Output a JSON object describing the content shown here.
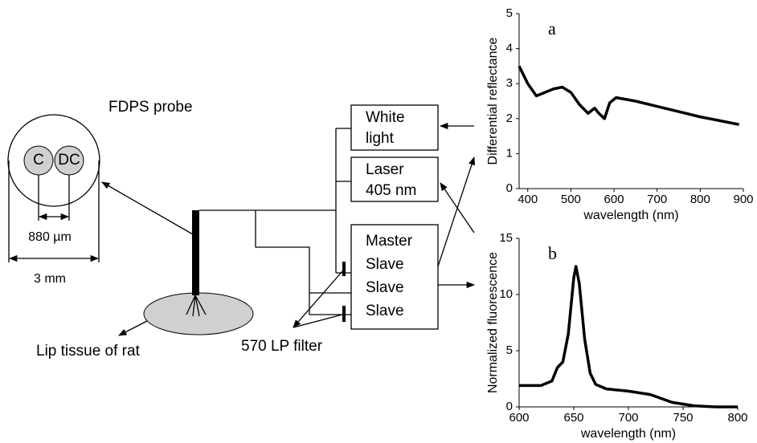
{
  "diagram": {
    "probe_title": "FDPS probe",
    "collection_fiber": "C",
    "delivery_collection_fiber": "DC",
    "fiber_distance": "880 µm",
    "probe_diameter": "3 mm",
    "tissue": "Lip tissue of rat",
    "filter": "570 LP filter",
    "white_light": [
      "White",
      "light"
    ],
    "laser": [
      "Laser",
      "405 nm"
    ],
    "spectrometers": [
      "Master",
      "Slave",
      "Slave",
      "Slave"
    ]
  },
  "chart_data": [
    {
      "type": "line",
      "label": "a",
      "y_label": "Differential reflectance",
      "x_label": "wavelength (nm)",
      "color": "#000000",
      "x": [
        380,
        400,
        420,
        440,
        460,
        480,
        500,
        520,
        540,
        555,
        565,
        578,
        590,
        605,
        650,
        700,
        750,
        800,
        850,
        890
      ],
      "values": [
        3.5,
        3.0,
        2.65,
        2.75,
        2.85,
        2.9,
        2.75,
        2.4,
        2.15,
        2.3,
        2.15,
        2.0,
        2.45,
        2.6,
        2.5,
        2.35,
        2.2,
        2.05,
        1.93,
        1.83
      ],
      "xlim": [
        380,
        900
      ],
      "ylim": [
        0,
        5
      ],
      "xticks": [
        400,
        500,
        600,
        700,
        800,
        900
      ],
      "yticks": [
        0,
        1,
        2,
        3,
        4,
        5
      ]
    },
    {
      "type": "line",
      "label": "b",
      "y_label": "Normalized fluorescence",
      "x_label": "wavelength (nm)",
      "color": "#000000",
      "x": [
        600,
        620,
        630,
        635,
        640,
        645,
        650,
        652,
        655,
        660,
        665,
        670,
        680,
        700,
        720,
        740,
        760,
        780,
        800
      ],
      "values": [
        1.9,
        1.9,
        2.3,
        3.5,
        4.0,
        6.5,
        11.5,
        12.5,
        11,
        6,
        3,
        2,
        1.6,
        1.4,
        1.1,
        0.4,
        0.1,
        0,
        0
      ],
      "xlim": [
        600,
        800
      ],
      "ylim": [
        0,
        15
      ],
      "xticks": [
        600,
        650,
        700,
        750,
        800
      ],
      "yticks": [
        0,
        5,
        10,
        15
      ]
    }
  ]
}
